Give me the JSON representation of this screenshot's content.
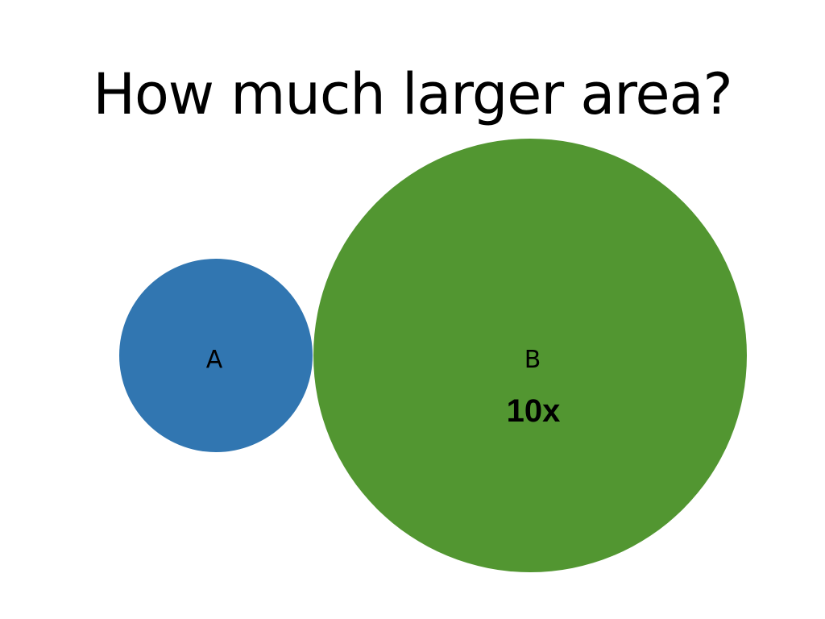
{
  "slide": {
    "title": "How much larger area?"
  },
  "circles": [
    {
      "label": "A",
      "color": "#3176b1"
    },
    {
      "label": "B",
      "color": "#529631"
    }
  ],
  "ratio_label": "10x"
}
